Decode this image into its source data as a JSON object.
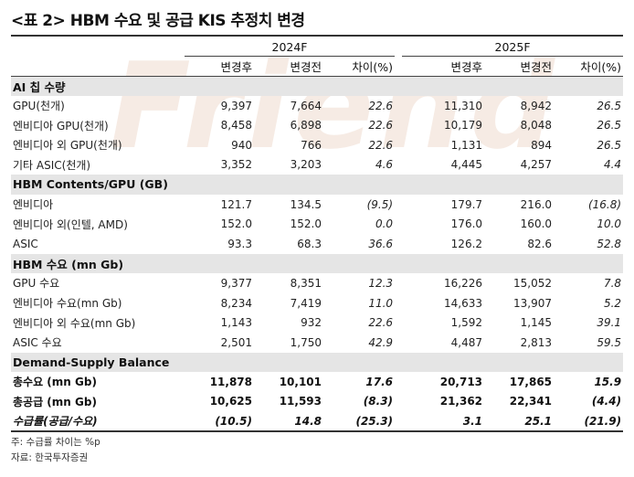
{
  "title": "<표 2> HBM 수요 및 공급 KIS 추정치 변경",
  "watermark": "Friend",
  "years": [
    "2024F",
    "2025F"
  ],
  "columns": [
    "변경후",
    "변경전",
    "차이(%)",
    "변경후",
    "변경전",
    "차이(%)"
  ],
  "sections": [
    {
      "heading": "AI 칩 수량",
      "rows": [
        {
          "label": "GPU(천개)",
          "v": [
            "9,397",
            "7,664",
            "22.6",
            "11,310",
            "8,942",
            "26.5"
          ]
        },
        {
          "label": "엔비디아 GPU(천개)",
          "v": [
            "8,458",
            "6,898",
            "22.6",
            "10,179",
            "8,048",
            "26.5"
          ]
        },
        {
          "label": "엔비디아 외 GPU(천개)",
          "v": [
            "940",
            "766",
            "22.6",
            "1,131",
            "894",
            "26.5"
          ]
        },
        {
          "label": "기타 ASIC(천개)",
          "v": [
            "3,352",
            "3,203",
            "4.6",
            "4,445",
            "4,257",
            "4.4"
          ]
        }
      ]
    },
    {
      "heading": "HBM Contents/GPU (GB)",
      "rows": [
        {
          "label": "엔비디아",
          "v": [
            "121.7",
            "134.5",
            "(9.5)",
            "179.7",
            "216.0",
            "(16.8)"
          ]
        },
        {
          "label": "엔비디아 외(인텔, AMD)",
          "v": [
            "152.0",
            "152.0",
            "0.0",
            "176.0",
            "160.0",
            "10.0"
          ]
        },
        {
          "label": "ASIC",
          "v": [
            "93.3",
            "68.3",
            "36.6",
            "126.2",
            "82.6",
            "52.8"
          ]
        }
      ]
    },
    {
      "heading": "HBM 수요 (mn Gb)",
      "rows": [
        {
          "label": "GPU 수요",
          "v": [
            "9,377",
            "8,351",
            "12.3",
            "16,226",
            "15,052",
            "7.8"
          ]
        },
        {
          "label": "엔비디아 수요(mn Gb)",
          "v": [
            "8,234",
            "7,419",
            "11.0",
            "14,633",
            "13,907",
            "5.2"
          ]
        },
        {
          "label": "엔비디아 외 수요(mn Gb)",
          "v": [
            "1,143",
            "932",
            "22.6",
            "1,592",
            "1,145",
            "39.1"
          ]
        },
        {
          "label": "ASIC 수요",
          "v": [
            "2,501",
            "1,750",
            "42.9",
            "4,487",
            "2,813",
            "59.5"
          ]
        }
      ]
    },
    {
      "heading": "Demand-Supply Balance",
      "rows": [
        {
          "label": "총수요 (mn Gb)",
          "v": [
            "11,878",
            "10,101",
            "17.6",
            "20,713",
            "17,865",
            "15.9"
          ],
          "style": "bold"
        },
        {
          "label": "총공급 (mn Gb)",
          "v": [
            "10,625",
            "11,593",
            "(8.3)",
            "21,362",
            "22,341",
            "(4.4)"
          ],
          "style": "bold"
        },
        {
          "label": "수급률(공급/수요)",
          "v": [
            "(10.5)",
            "14.8",
            "(25.3)",
            "3.1",
            "25.1",
            "(21.9)"
          ],
          "style": "italic"
        }
      ]
    }
  ],
  "notes": [
    "주: 수급률 차이는 %p",
    "자료: 한국투자증권"
  ]
}
